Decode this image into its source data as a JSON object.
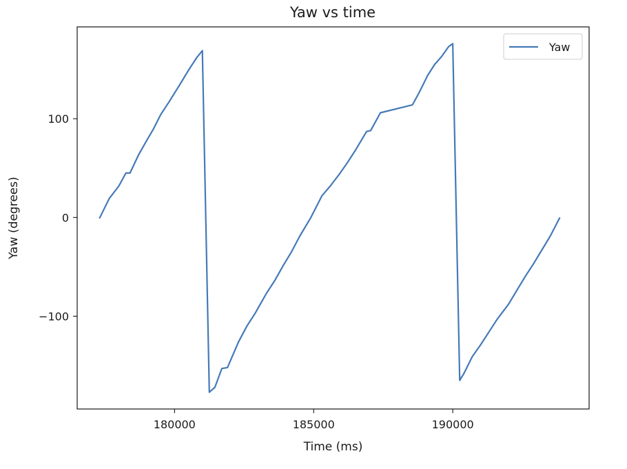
{
  "chart_data": {
    "type": "line",
    "title": "Yaw vs time",
    "xlabel": "Time (ms)",
    "ylabel": "Yaw (degrees)",
    "xlim": [
      176500,
      194900
    ],
    "ylim": [
      -194,
      193
    ],
    "xticks": [
      180000,
      185000,
      190000
    ],
    "yticks": [
      100,
      0,
      -100
    ],
    "xtick_labels": [
      "180000",
      "185000",
      "190000"
    ],
    "ytick_labels": [
      "100",
      "0",
      "−100"
    ],
    "grid": false,
    "legend": {
      "position": "top-right",
      "entries": [
        "Yaw"
      ]
    },
    "series": [
      {
        "name": "Yaw",
        "color": "#4479b7",
        "x": [
          177300,
          177650,
          178000,
          178250,
          178400,
          178700,
          179000,
          179250,
          179500,
          179800,
          180200,
          180500,
          180800,
          181000,
          181250,
          181450,
          181700,
          181900,
          182300,
          182600,
          182900,
          183300,
          183600,
          183900,
          184200,
          184500,
          184900,
          185300,
          185600,
          185900,
          186200,
          186500,
          186900,
          187050,
          187400,
          188550,
          188800,
          189100,
          189350,
          189600,
          189850,
          190000,
          190250,
          190400,
          190700,
          191000,
          191300,
          191600,
          192000,
          192300,
          192600,
          192900,
          193200,
          193500,
          193850
        ],
        "y": [
          -1,
          19,
          32,
          45,
          45,
          63,
          78,
          90,
          104,
          117,
          135,
          149,
          162,
          169,
          -177,
          -172,
          -153,
          -152,
          -126,
          -110,
          -97,
          -77,
          -64,
          -49,
          -35,
          -19,
          0,
          22,
          32,
          43,
          55,
          68,
          87,
          88,
          106,
          114,
          127,
          144,
          155,
          163,
          173,
          176,
          -165,
          -158,
          -141,
          -129,
          -116,
          -103,
          -88,
          -74,
          -60,
          -47,
          -33,
          -19,
          0
        ]
      }
    ]
  }
}
